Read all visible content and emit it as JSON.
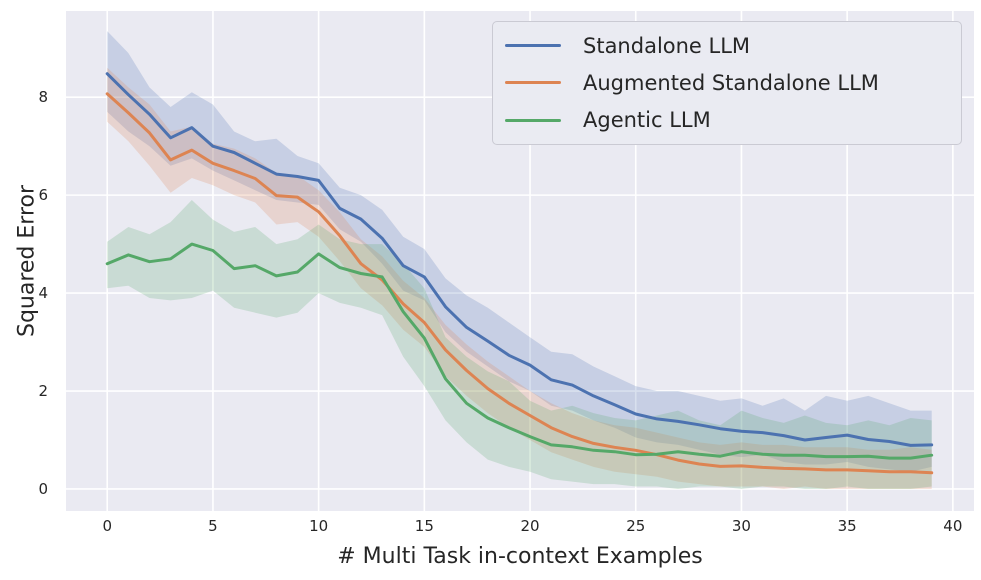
{
  "figure": {
    "background": "#ffffff",
    "axes_background": "#eaeaf2",
    "grid_color": "#ffffff",
    "text_color": "#262626",
    "legend_background": "#eaebf2",
    "legend_border": "#cacad3"
  },
  "chart_data": {
    "type": "line",
    "title": "",
    "xlabel": "# Multi Task in-context Examples",
    "ylabel": "Squared Error",
    "grid": true,
    "legend_position": "upper right",
    "xlim": [
      -1.95,
      41.0
    ],
    "ylim": [
      -0.45,
      9.76
    ],
    "xticks": [
      0,
      5,
      10,
      15,
      20,
      25,
      30,
      35,
      40
    ],
    "yticks": [
      0,
      2,
      4,
      6,
      8
    ],
    "band_alpha": 0.22,
    "x": [
      0,
      1,
      2,
      3,
      4,
      5,
      6,
      7,
      8,
      9,
      10,
      11,
      12,
      13,
      14,
      15,
      16,
      17,
      18,
      19,
      20,
      21,
      22,
      23,
      24,
      25,
      26,
      27,
      28,
      29,
      30,
      31,
      32,
      33,
      34,
      35,
      36,
      37,
      38,
      39
    ],
    "series": [
      {
        "name": "Standalone LLM",
        "color": "#4c72b0",
        "values": [
          8.48,
          8.05,
          7.65,
          7.17,
          7.38,
          7.0,
          6.87,
          6.65,
          6.43,
          6.38,
          6.3,
          5.73,
          5.51,
          5.12,
          4.56,
          4.33,
          3.72,
          3.3,
          3.02,
          2.73,
          2.53,
          2.23,
          2.12,
          1.9,
          1.72,
          1.53,
          1.43,
          1.38,
          1.31,
          1.23,
          1.18,
          1.15,
          1.09,
          1.0,
          1.05,
          1.1,
          1.01,
          0.97,
          0.89,
          0.9
        ],
        "band_hi": [
          9.35,
          8.9,
          8.2,
          7.8,
          8.1,
          7.85,
          7.3,
          7.1,
          7.15,
          6.8,
          6.65,
          6.15,
          6.0,
          5.7,
          5.15,
          4.9,
          4.3,
          3.95,
          3.7,
          3.4,
          3.1,
          2.8,
          2.75,
          2.5,
          2.3,
          2.1,
          2.0,
          2.0,
          1.9,
          1.8,
          1.85,
          1.7,
          1.85,
          1.6,
          1.9,
          1.8,
          1.9,
          1.75,
          1.6,
          1.6
        ],
        "band_lo": [
          7.7,
          7.3,
          7.0,
          6.6,
          6.75,
          6.5,
          6.3,
          6.1,
          5.9,
          5.85,
          5.8,
          5.3,
          5.05,
          4.6,
          4.05,
          3.85,
          3.2,
          2.8,
          2.5,
          2.2,
          2.0,
          1.7,
          1.6,
          1.4,
          1.25,
          1.05,
          0.95,
          0.9,
          0.8,
          0.7,
          0.65,
          0.7,
          0.55,
          0.5,
          0.5,
          0.55,
          0.45,
          0.4,
          0.35,
          0.45
        ]
      },
      {
        "name": "Augmented Standalone LLM",
        "color": "#dd8452",
        "values": [
          8.07,
          7.68,
          7.27,
          6.72,
          6.92,
          6.65,
          6.5,
          6.34,
          5.99,
          5.96,
          5.66,
          5.17,
          4.6,
          4.27,
          3.78,
          3.4,
          2.84,
          2.42,
          2.05,
          1.75,
          1.5,
          1.25,
          1.07,
          0.93,
          0.85,
          0.79,
          0.7,
          0.59,
          0.51,
          0.46,
          0.47,
          0.44,
          0.42,
          0.41,
          0.39,
          0.39,
          0.37,
          0.35,
          0.35,
          0.33
        ],
        "band_hi": [
          8.6,
          8.2,
          7.85,
          7.3,
          7.4,
          7.05,
          6.95,
          6.75,
          6.45,
          6.4,
          6.1,
          5.65,
          5.1,
          4.75,
          4.25,
          3.9,
          3.35,
          2.95,
          2.6,
          2.3,
          2.0,
          1.75,
          1.55,
          1.4,
          1.3,
          1.25,
          1.15,
          1.05,
          0.95,
          0.9,
          0.95,
          0.9,
          0.9,
          0.85,
          0.85,
          0.85,
          0.8,
          0.8,
          0.85,
          0.8
        ],
        "band_lo": [
          7.5,
          7.1,
          6.6,
          6.05,
          6.35,
          6.2,
          6.0,
          5.85,
          5.4,
          5.45,
          5.15,
          4.65,
          4.1,
          3.75,
          3.25,
          2.9,
          2.3,
          1.9,
          1.55,
          1.25,
          1.0,
          0.75,
          0.6,
          0.45,
          0.35,
          0.3,
          0.25,
          0.15,
          0.1,
          0.05,
          0.05,
          0.05,
          0.0,
          0.05,
          0.0,
          0.0,
          0.0,
          0.0,
          0.0,
          0.0
        ]
      },
      {
        "name": "Agentic LLM",
        "color": "#55a868",
        "values": [
          4.6,
          4.78,
          4.64,
          4.7,
          5.0,
          4.87,
          4.5,
          4.56,
          4.35,
          4.43,
          4.8,
          4.52,
          4.4,
          4.33,
          3.62,
          3.08,
          2.25,
          1.75,
          1.45,
          1.25,
          1.07,
          0.9,
          0.86,
          0.79,
          0.76,
          0.7,
          0.71,
          0.76,
          0.71,
          0.67,
          0.76,
          0.71,
          0.69,
          0.69,
          0.66,
          0.66,
          0.67,
          0.63,
          0.63,
          0.69
        ],
        "band_hi": [
          5.05,
          5.35,
          5.2,
          5.45,
          5.9,
          5.5,
          5.25,
          5.35,
          5.0,
          5.1,
          5.4,
          5.1,
          5.0,
          5.0,
          4.6,
          4.1,
          3.1,
          2.7,
          2.4,
          2.2,
          1.8,
          1.6,
          1.7,
          1.55,
          1.45,
          1.4,
          1.5,
          1.6,
          1.4,
          1.3,
          1.6,
          1.45,
          1.35,
          1.5,
          1.35,
          1.3,
          1.4,
          1.3,
          1.45,
          1.4
        ],
        "band_lo": [
          4.1,
          4.15,
          3.9,
          3.85,
          3.9,
          4.05,
          3.7,
          3.6,
          3.5,
          3.6,
          4.0,
          3.8,
          3.7,
          3.55,
          2.7,
          2.1,
          1.4,
          0.95,
          0.6,
          0.45,
          0.35,
          0.2,
          0.15,
          0.1,
          0.1,
          0.05,
          0.05,
          0.0,
          0.05,
          0.05,
          0.0,
          0.05,
          0.05,
          0.0,
          0.0,
          0.05,
          0.0,
          0.0,
          0.0,
          0.05
        ]
      }
    ]
  },
  "legend": {
    "items": [
      {
        "label": "Standalone LLM",
        "color": "#4c72b0"
      },
      {
        "label": "Augmented Standalone LLM",
        "color": "#dd8452"
      },
      {
        "label": "Agentic LLM",
        "color": "#55a868"
      }
    ]
  }
}
